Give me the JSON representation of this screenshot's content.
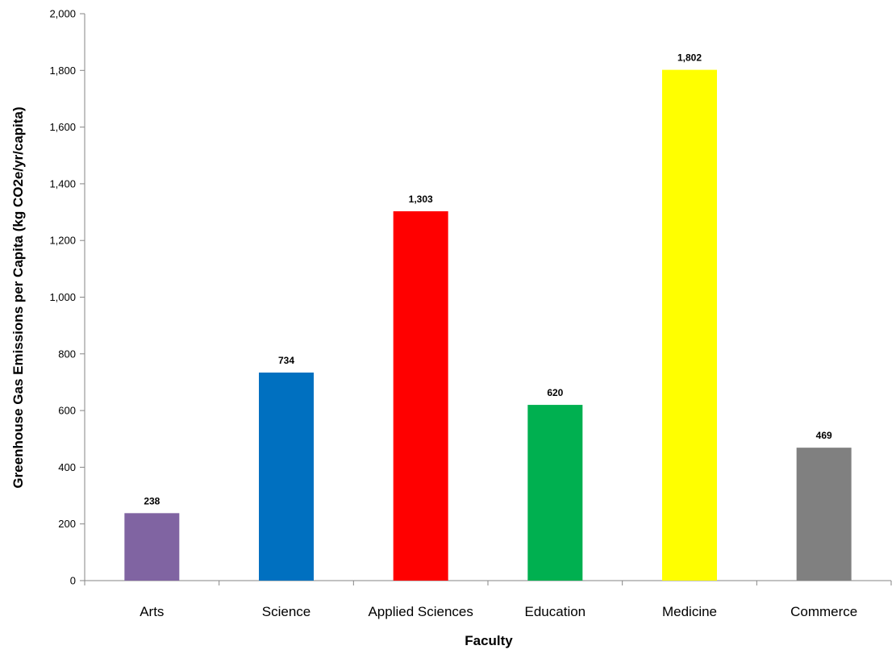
{
  "chart_data": {
    "type": "bar",
    "title": "",
    "xlabel": "Faculty",
    "ylabel": "Greenhouse Gas Emissions per Capita (kg CO2e/yr/capita)",
    "categories": [
      "Arts",
      "Science",
      "Applied Sciences",
      "Education",
      "Medicine",
      "Commerce"
    ],
    "values": [
      238,
      734,
      1303,
      620,
      1802,
      469
    ],
    "data_labels": [
      "238",
      "734",
      "1,303",
      "620",
      "1,802",
      "469"
    ],
    "colors": [
      "#8064A2",
      "#0070C0",
      "#FF0000",
      "#00B050",
      "#FFFF00",
      "#808080"
    ],
    "ylim": [
      0,
      2000
    ],
    "yticks": [
      0,
      200,
      400,
      600,
      800,
      1000,
      1200,
      1400,
      1600,
      1800,
      2000
    ],
    "ytick_labels": [
      "0",
      "200",
      "400",
      "600",
      "800",
      "1,000",
      "1,200",
      "1,400",
      "1,600",
      "1,800",
      "2,000"
    ],
    "grid": false,
    "legend": "none"
  }
}
